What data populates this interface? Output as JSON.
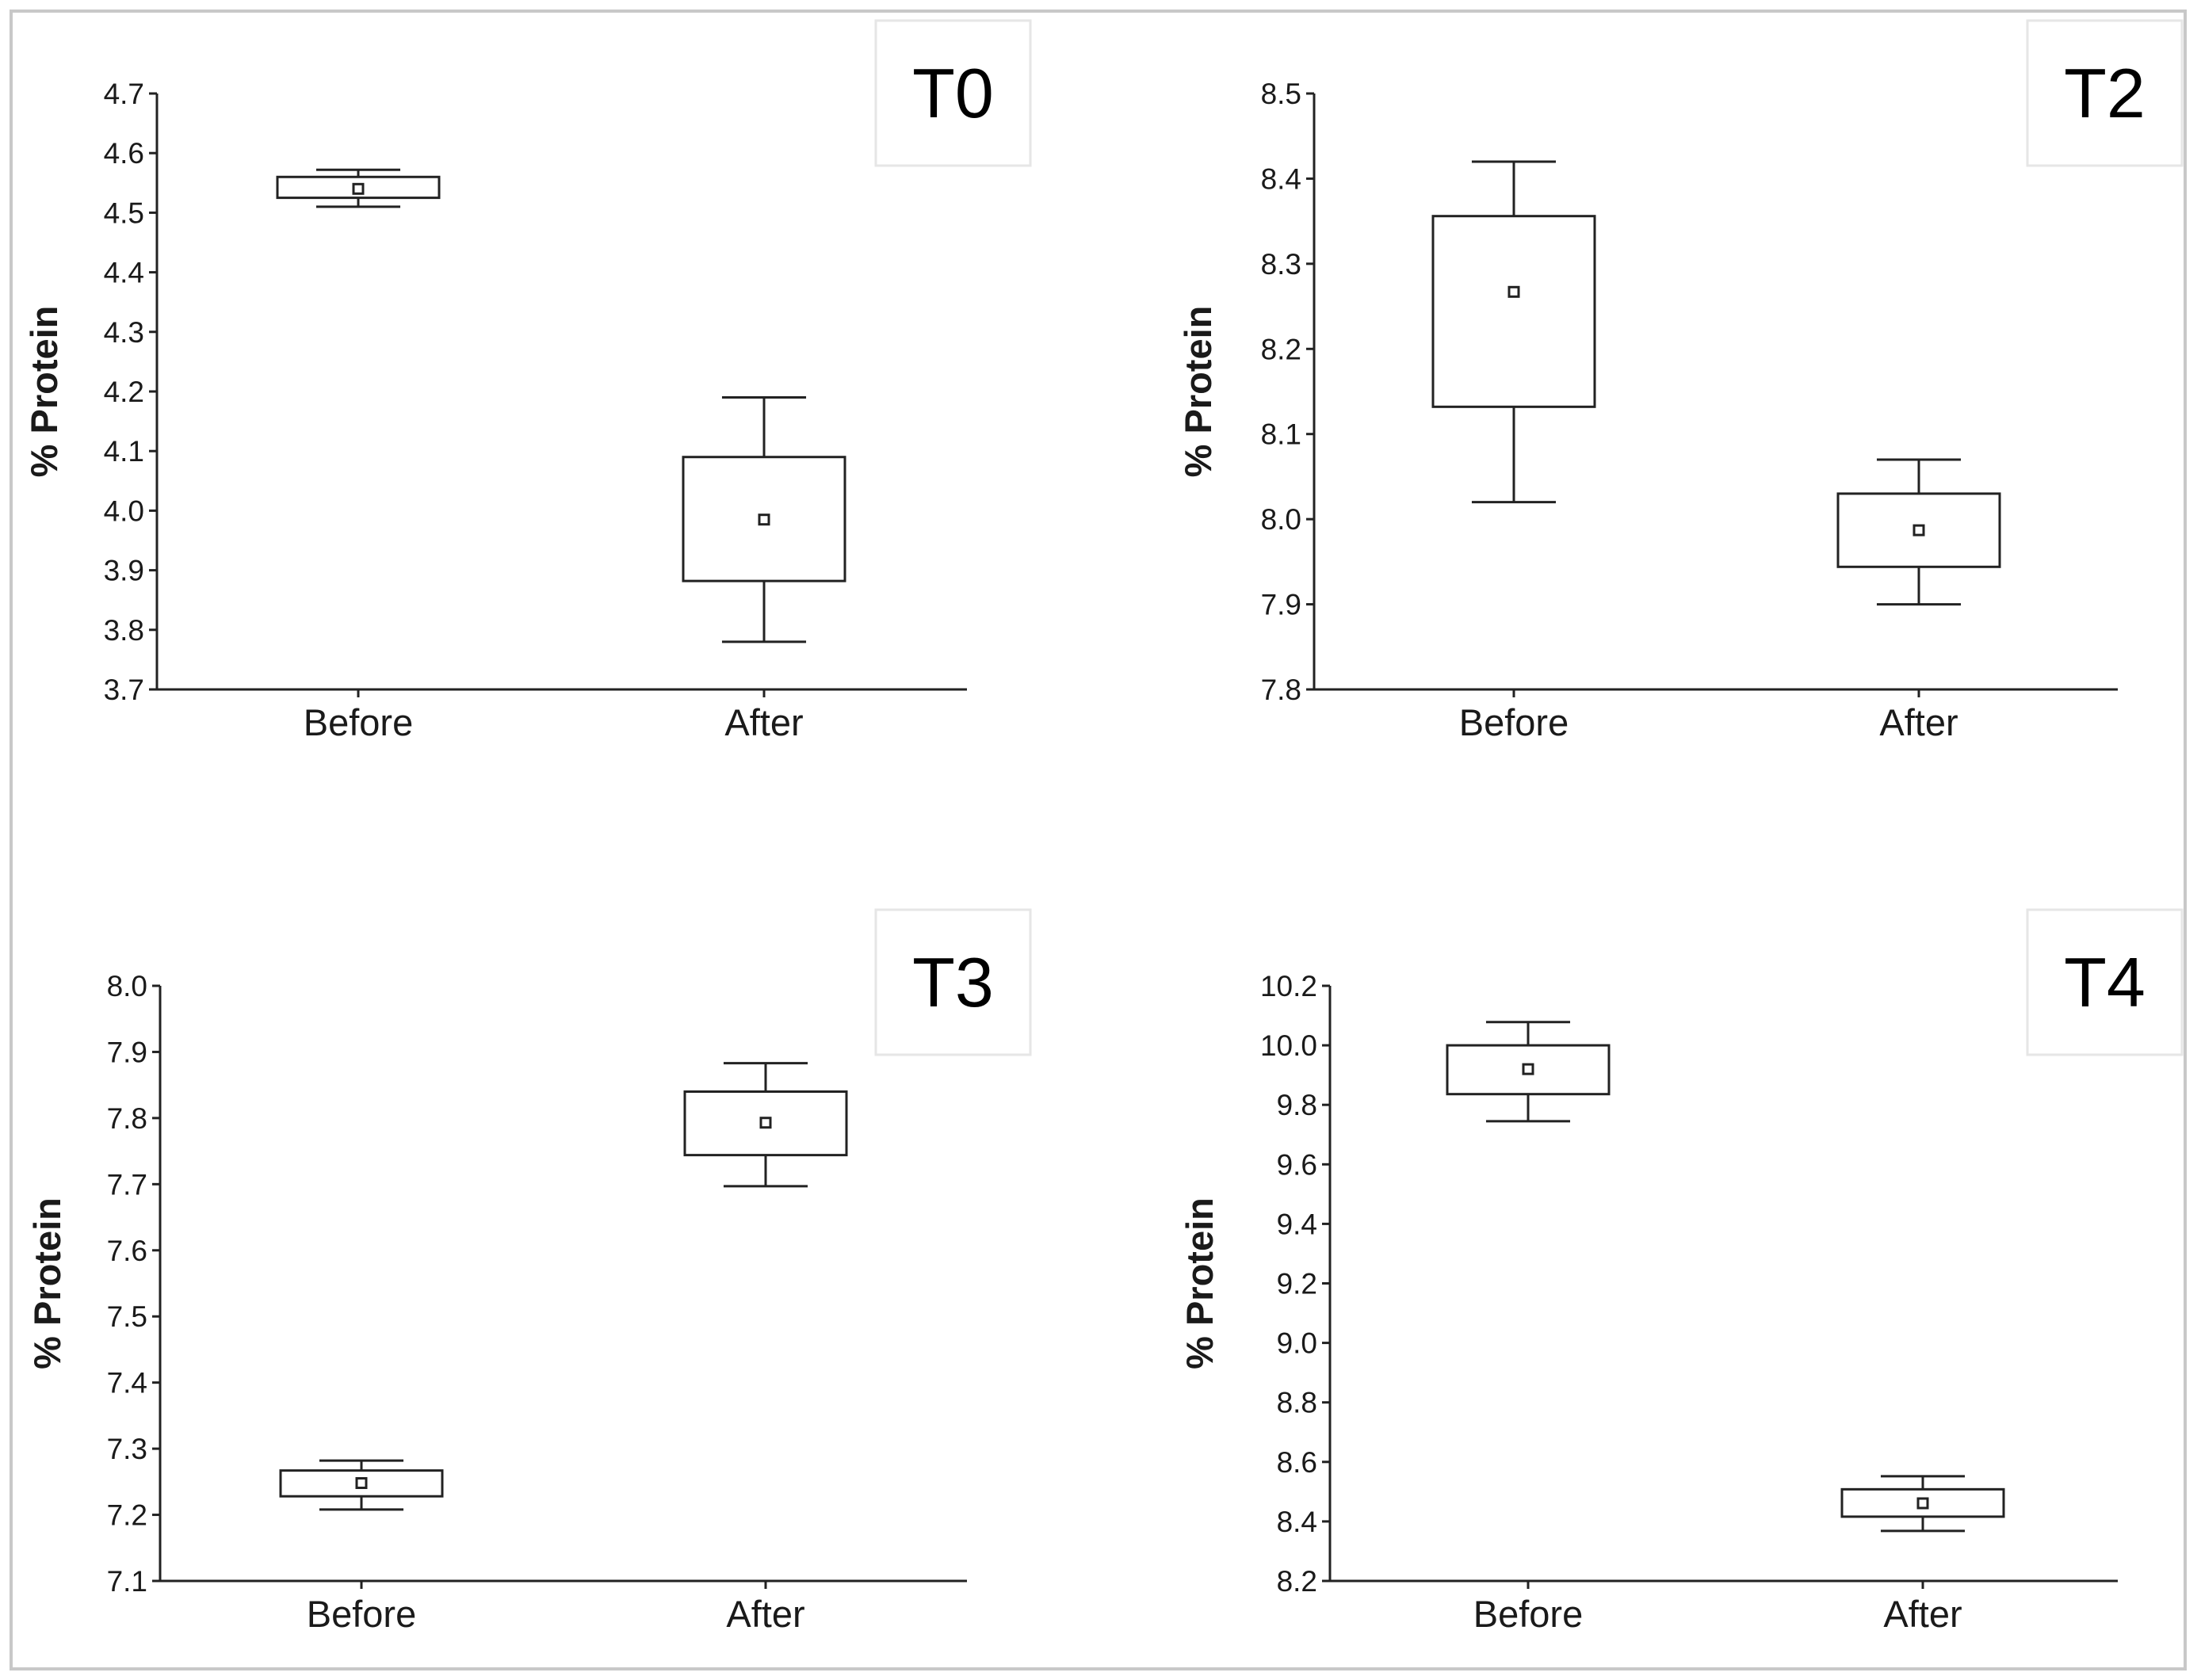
{
  "chart_data": [
    {
      "type": "box",
      "panel_tag": "T0",
      "ylabel": "% Protein",
      "ylim": [
        3.7,
        4.7
      ],
      "yticks": [
        "3.7",
        "3.8",
        "3.9",
        "4.0",
        "4.1",
        "4.2",
        "4.3",
        "4.4",
        "4.5",
        "4.6",
        "4.7"
      ],
      "categories": [
        "Before",
        "After"
      ],
      "boxes": [
        {
          "mean": 4.54,
          "q1": 4.525,
          "q3": 4.56,
          "whisker_low": 4.51,
          "whisker_high": 4.572
        },
        {
          "mean": 3.985,
          "q1": 3.882,
          "q3": 4.09,
          "whisker_low": 3.78,
          "whisker_high": 4.19
        }
      ]
    },
    {
      "type": "box",
      "panel_tag": "T2",
      "ylabel": "% Protein",
      "ylim": [
        7.8,
        8.5
      ],
      "yticks": [
        "7.8",
        "7.9",
        "8.0",
        "8.1",
        "8.2",
        "8.3",
        "8.4",
        "8.5"
      ],
      "categories": [
        "Before",
        "After"
      ],
      "boxes": [
        {
          "mean": 8.267,
          "q1": 8.132,
          "q3": 8.356,
          "whisker_low": 8.02,
          "whisker_high": 8.42
        },
        {
          "mean": 7.987,
          "q1": 7.944,
          "q3": 8.03,
          "whisker_low": 7.9,
          "whisker_high": 8.07
        }
      ]
    },
    {
      "type": "box",
      "panel_tag": "T3",
      "ylabel": "% Protein",
      "ylim": [
        7.1,
        8.0
      ],
      "yticks": [
        "7.1",
        "7.2",
        "7.3",
        "7.4",
        "7.5",
        "7.6",
        "7.7",
        "7.8",
        "7.9",
        "8.0"
      ],
      "categories": [
        "Before",
        "After"
      ],
      "boxes": [
        {
          "mean": 7.248,
          "q1": 7.228,
          "q3": 7.267,
          "whisker_low": 7.208,
          "whisker_high": 7.282
        },
        {
          "mean": 7.793,
          "q1": 7.744,
          "q3": 7.84,
          "whisker_low": 7.697,
          "whisker_high": 7.883
        }
      ]
    },
    {
      "type": "box",
      "panel_tag": "T4",
      "ylabel": "% Protein",
      "ylim": [
        8.2,
        10.2
      ],
      "yticks": [
        "8.2",
        "8.4",
        "8.6",
        "8.8",
        "9.0",
        "9.2",
        "9.4",
        "9.6",
        "9.8",
        "10.0",
        "10.2"
      ],
      "categories": [
        "Before",
        "After"
      ],
      "boxes": [
        {
          "mean": 9.92,
          "q1": 9.836,
          "q3": 10.0,
          "whisker_low": 9.745,
          "whisker_high": 10.078
        },
        {
          "mean": 8.461,
          "q1": 8.416,
          "q3": 8.508,
          "whisker_low": 8.368,
          "whisker_high": 8.552
        }
      ]
    }
  ]
}
